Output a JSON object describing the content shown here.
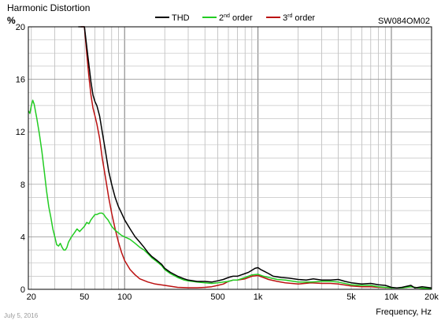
{
  "chart_data": {
    "type": "line",
    "title": "Harmonic Distortion",
    "model": "SW084OM02",
    "ylabel": "%",
    "xlabel": "Frequency, Hz",
    "date_note": "July 5, 2016",
    "x_scale": "log",
    "xlim": [
      19,
      20000
    ],
    "ylim": [
      0,
      20
    ],
    "grid": true,
    "legend_position": "top",
    "y_ticks": [
      {
        "value": 0,
        "label": "0"
      },
      {
        "value": 4,
        "label": "4"
      },
      {
        "value": 8,
        "label": "8"
      },
      {
        "value": 12,
        "label": "12"
      },
      {
        "value": 16,
        "label": "16"
      },
      {
        "value": 20,
        "label": "20"
      }
    ],
    "x_ticks": [
      {
        "value": 20,
        "label": "20"
      },
      {
        "value": 50,
        "label": "50"
      },
      {
        "value": 100,
        "label": "100"
      },
      {
        "value": 500,
        "label": "500"
      },
      {
        "value": 1000,
        "label": "1k"
      },
      {
        "value": 5000,
        "label": "5k"
      },
      {
        "value": 10000,
        "label": "10k"
      },
      {
        "value": 20000,
        "label": "20k"
      }
    ],
    "series": [
      {
        "name": "THD",
        "color": "#000000",
        "points": [
          [
            45,
            20
          ],
          [
            50,
            20
          ],
          [
            53,
            17.8
          ],
          [
            56,
            15.8
          ],
          [
            58,
            14.8
          ],
          [
            60,
            14.3
          ],
          [
            62,
            14.0
          ],
          [
            65,
            13.2
          ],
          [
            68,
            12.0
          ],
          [
            72,
            10.5
          ],
          [
            76,
            9.0
          ],
          [
            80,
            8.0
          ],
          [
            85,
            7.0
          ],
          [
            90,
            6.3
          ],
          [
            95,
            5.8
          ],
          [
            100,
            5.3
          ],
          [
            110,
            4.6
          ],
          [
            120,
            4.0
          ],
          [
            130,
            3.6
          ],
          [
            140,
            3.2
          ],
          [
            150,
            2.8
          ],
          [
            160,
            2.5
          ],
          [
            175,
            2.2
          ],
          [
            190,
            1.9
          ],
          [
            200,
            1.6
          ],
          [
            220,
            1.3
          ],
          [
            250,
            1.0
          ],
          [
            280,
            0.8
          ],
          [
            300,
            0.7
          ],
          [
            350,
            0.6
          ],
          [
            400,
            0.6
          ],
          [
            450,
            0.55
          ],
          [
            500,
            0.65
          ],
          [
            550,
            0.75
          ],
          [
            600,
            0.9
          ],
          [
            650,
            1.0
          ],
          [
            700,
            1.0
          ],
          [
            750,
            1.1
          ],
          [
            800,
            1.2
          ],
          [
            850,
            1.3
          ],
          [
            900,
            1.45
          ],
          [
            950,
            1.6
          ],
          [
            1000,
            1.65
          ],
          [
            1050,
            1.5
          ],
          [
            1100,
            1.4
          ],
          [
            1200,
            1.2
          ],
          [
            1300,
            1.0
          ],
          [
            1500,
            0.9
          ],
          [
            1700,
            0.85
          ],
          [
            2000,
            0.75
          ],
          [
            2300,
            0.7
          ],
          [
            2600,
            0.8
          ],
          [
            3000,
            0.7
          ],
          [
            3500,
            0.7
          ],
          [
            4000,
            0.75
          ],
          [
            4500,
            0.6
          ],
          [
            5000,
            0.5
          ],
          [
            6000,
            0.4
          ],
          [
            7000,
            0.45
          ],
          [
            8000,
            0.35
          ],
          [
            9000,
            0.3
          ],
          [
            10000,
            0.15
          ],
          [
            11000,
            0.1
          ],
          [
            12000,
            0.15
          ],
          [
            14000,
            0.3
          ],
          [
            15000,
            0.1
          ],
          [
            17000,
            0.2
          ],
          [
            20000,
            0.1
          ]
        ]
      },
      {
        "name": "2nd order",
        "color": "#22cc22",
        "points": [
          [
            19,
            13.6
          ],
          [
            19.5,
            13.4
          ],
          [
            20,
            14.0
          ],
          [
            20.5,
            14.4
          ],
          [
            21,
            14.1
          ],
          [
            22,
            13.0
          ],
          [
            23,
            11.8
          ],
          [
            24,
            10.5
          ],
          [
            25,
            9.0
          ],
          [
            26,
            7.5
          ],
          [
            27,
            6.3
          ],
          [
            28,
            5.5
          ],
          [
            29,
            4.6
          ],
          [
            30,
            4.0
          ],
          [
            31,
            3.4
          ],
          [
            32,
            3.3
          ],
          [
            33,
            3.5
          ],
          [
            34,
            3.2
          ],
          [
            35,
            3.0
          ],
          [
            36,
            3.0
          ],
          [
            37,
            3.2
          ],
          [
            38,
            3.6
          ],
          [
            40,
            4.0
          ],
          [
            42,
            4.3
          ],
          [
            44,
            4.6
          ],
          [
            46,
            4.4
          ],
          [
            48,
            4.6
          ],
          [
            50,
            4.8
          ],
          [
            52,
            5.1
          ],
          [
            54,
            5.0
          ],
          [
            56,
            5.3
          ],
          [
            58,
            5.5
          ],
          [
            60,
            5.7
          ],
          [
            62,
            5.7
          ],
          [
            65,
            5.8
          ],
          [
            68,
            5.8
          ],
          [
            70,
            5.7
          ],
          [
            72,
            5.5
          ],
          [
            75,
            5.3
          ],
          [
            78,
            5.0
          ],
          [
            80,
            4.8
          ],
          [
            85,
            4.5
          ],
          [
            90,
            4.3
          ],
          [
            95,
            4.1
          ],
          [
            100,
            4.0
          ],
          [
            110,
            3.8
          ],
          [
            120,
            3.5
          ],
          [
            130,
            3.2
          ],
          [
            140,
            3.0
          ],
          [
            150,
            2.7
          ],
          [
            160,
            2.4
          ],
          [
            175,
            2.1
          ],
          [
            190,
            1.8
          ],
          [
            200,
            1.5
          ],
          [
            220,
            1.2
          ],
          [
            250,
            0.9
          ],
          [
            280,
            0.7
          ],
          [
            300,
            0.65
          ],
          [
            350,
            0.55
          ],
          [
            400,
            0.5
          ],
          [
            450,
            0.45
          ],
          [
            500,
            0.5
          ],
          [
            550,
            0.55
          ],
          [
            600,
            0.6
          ],
          [
            650,
            0.7
          ],
          [
            700,
            0.7
          ],
          [
            800,
            0.9
          ],
          [
            900,
            1.1
          ],
          [
            1000,
            1.15
          ],
          [
            1100,
            1.0
          ],
          [
            1200,
            0.9
          ],
          [
            1400,
            0.75
          ],
          [
            1600,
            0.7
          ],
          [
            2000,
            0.55
          ],
          [
            2500,
            0.55
          ],
          [
            3000,
            0.6
          ],
          [
            3500,
            0.6
          ],
          [
            4000,
            0.55
          ],
          [
            5000,
            0.35
          ],
          [
            6000,
            0.3
          ],
          [
            7000,
            0.3
          ],
          [
            8000,
            0.2
          ],
          [
            10000,
            0.1
          ],
          [
            12000,
            0.1
          ],
          [
            14000,
            0.2
          ],
          [
            16000,
            0.1
          ],
          [
            20000,
            0.05
          ]
        ]
      },
      {
        "name": "3rd order",
        "color": "#bb1111",
        "points": [
          [
            47,
            20
          ],
          [
            50,
            20
          ],
          [
            52,
            18.0
          ],
          [
            54,
            16.2
          ],
          [
            56,
            14.8
          ],
          [
            58,
            13.8
          ],
          [
            60,
            13.2
          ],
          [
            62,
            12.6
          ],
          [
            65,
            11.5
          ],
          [
            68,
            10.0
          ],
          [
            72,
            8.5
          ],
          [
            76,
            7.0
          ],
          [
            80,
            5.8
          ],
          [
            85,
            4.6
          ],
          [
            90,
            3.6
          ],
          [
            95,
            2.8
          ],
          [
            100,
            2.2
          ],
          [
            110,
            1.5
          ],
          [
            120,
            1.1
          ],
          [
            130,
            0.8
          ],
          [
            150,
            0.55
          ],
          [
            170,
            0.4
          ],
          [
            200,
            0.3
          ],
          [
            250,
            0.15
          ],
          [
            300,
            0.12
          ],
          [
            350,
            0.12
          ],
          [
            400,
            0.15
          ],
          [
            450,
            0.2
          ],
          [
            500,
            0.3
          ],
          [
            550,
            0.4
          ],
          [
            600,
            0.6
          ],
          [
            650,
            0.7
          ],
          [
            700,
            0.7
          ],
          [
            800,
            0.8
          ],
          [
            900,
            1.0
          ],
          [
            1000,
            1.05
          ],
          [
            1100,
            0.9
          ],
          [
            1200,
            0.75
          ],
          [
            1400,
            0.6
          ],
          [
            1600,
            0.5
          ],
          [
            2000,
            0.4
          ],
          [
            2500,
            0.5
          ],
          [
            3000,
            0.45
          ],
          [
            3500,
            0.45
          ],
          [
            4000,
            0.4
          ],
          [
            5000,
            0.25
          ],
          [
            6000,
            0.2
          ],
          [
            7000,
            0.2
          ],
          [
            8000,
            0.15
          ],
          [
            10000,
            0.1
          ],
          [
            12000,
            0.1
          ],
          [
            14000,
            0.2
          ],
          [
            16000,
            0.1
          ],
          [
            20000,
            0.05
          ]
        ]
      }
    ]
  }
}
